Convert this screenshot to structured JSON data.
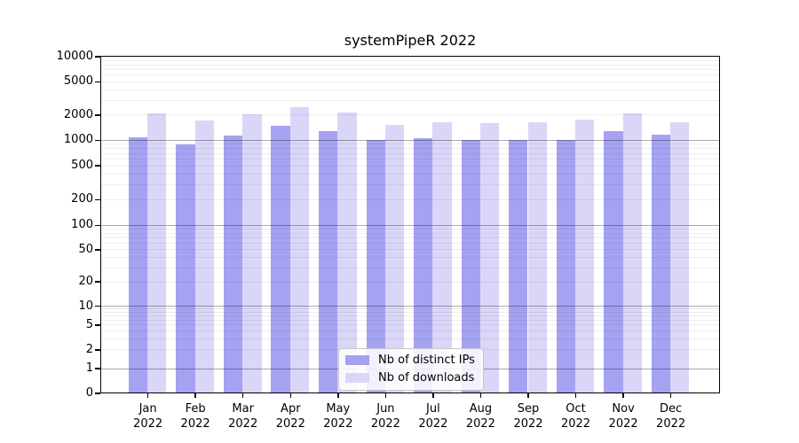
{
  "chart_data": {
    "type": "bar",
    "title": "systemPipeR 2022",
    "categories": [
      "Jan",
      "Feb",
      "Mar",
      "Apr",
      "May",
      "Jun",
      "Jul",
      "Aug",
      "Sep",
      "Oct",
      "Nov",
      "Dec"
    ],
    "x_sublabel": "2022",
    "series": [
      {
        "name": "Nb of distinct IPs",
        "color": "#a5a2f2",
        "values": [
          1100,
          910,
          1140,
          1510,
          1290,
          1010,
          1060,
          1010,
          1010,
          1010,
          1290,
          1190
        ]
      },
      {
        "name": "Nb of downloads",
        "color": "#d9d6f8",
        "values": [
          2130,
          1750,
          2050,
          2500,
          2180,
          1550,
          1670,
          1640,
          1680,
          1780,
          2100,
          1660
        ]
      }
    ],
    "yticks": [
      0,
      1,
      2,
      5,
      10,
      20,
      50,
      100,
      200,
      500,
      1000,
      2000,
      5000,
      10000
    ],
    "ylim": [
      0,
      10000
    ],
    "yscale": "log (with 0 baseline tick)",
    "grid": "horizontal minor and major lines",
    "legend_position": "inside bottom-center"
  },
  "colors": {
    "background": "#ffffff",
    "frame": "#000000",
    "major_grid": "#aaaaaa",
    "minor_grid": "#ececec",
    "bar_distinct_ips": "#a5a2f2",
    "bar_downloads": "#d9d6f8"
  }
}
